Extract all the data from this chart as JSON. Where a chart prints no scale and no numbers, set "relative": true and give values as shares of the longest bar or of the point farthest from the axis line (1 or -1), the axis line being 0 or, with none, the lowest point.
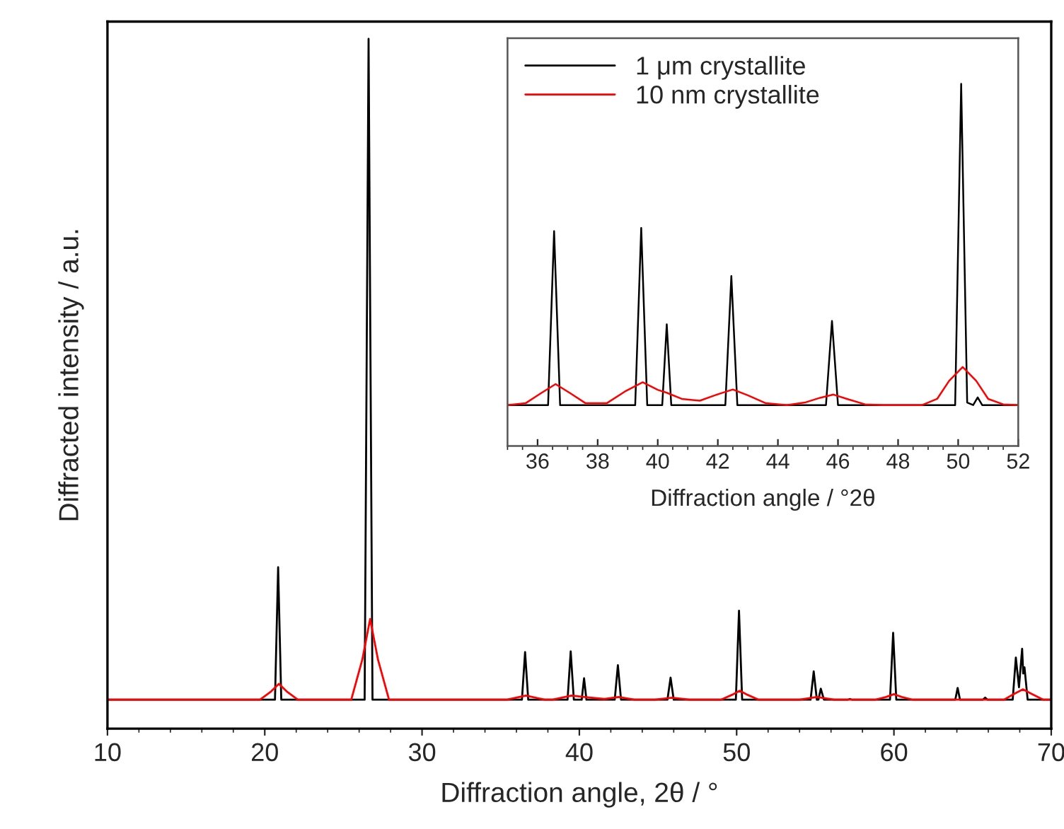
{
  "chart_data": [
    {
      "type": "line",
      "xlabel": "Diffraction angle, 2θ / °",
      "ylabel": "Diffracted intensity / a.u.",
      "relative": true,
      "xlim": [
        10,
        70
      ],
      "xticks": [
        10,
        20,
        30,
        40,
        50,
        60,
        70
      ],
      "tick_labels": "x",
      "grid": false,
      "legend": false,
      "series": [
        {
          "color": "#000000",
          "x": [
            10,
            20.65,
            20.85,
            21.05,
            26.35,
            26.6,
            26.85,
            36.35,
            36.55,
            36.75,
            39.25,
            39.45,
            39.65,
            40.15,
            40.3,
            40.45,
            42.25,
            42.45,
            42.65,
            45.6,
            45.8,
            46.0,
            49.95,
            50.15,
            50.35,
            54.7,
            54.9,
            55.1,
            55.2,
            55.35,
            55.55,
            57.05,
            57.2,
            57.35,
            59.75,
            59.95,
            60.15,
            63.9,
            64.05,
            64.2,
            65.65,
            65.8,
            65.95,
            67.55,
            67.75,
            67.95,
            68.15,
            68.22,
            68.3,
            68.5,
            70
          ],
          "values": [
            0.042,
            0.042,
            0.234,
            0.042,
            0.042,
            1.0,
            0.042,
            0.042,
            0.111,
            0.042,
            0.042,
            0.112,
            0.042,
            0.042,
            0.073,
            0.042,
            0.042,
            0.092,
            0.042,
            0.042,
            0.074,
            0.042,
            0.042,
            0.171,
            0.042,
            0.042,
            0.083,
            0.042,
            0.042,
            0.058,
            0.042,
            0.042,
            0.043,
            0.042,
            0.042,
            0.139,
            0.042,
            0.042,
            0.059,
            0.042,
            0.042,
            0.045,
            0.042,
            0.042,
            0.103,
            0.06,
            0.116,
            0.08,
            0.089,
            0.042,
            0.042
          ]
        },
        {
          "color": "#ff0000",
          "x": [
            10,
            19.7,
            20.4,
            20.9,
            21.4,
            22.1,
            25.5,
            26.2,
            26.7,
            27.2,
            27.9,
            35.4,
            36.6,
            37.8,
            38.3,
            39.5,
            40.3,
            41.6,
            42.5,
            43.5,
            44.8,
            45.9,
            47.0,
            49.0,
            49.7,
            50.2,
            50.7,
            51.4,
            54.0,
            55.1,
            56.2,
            58.8,
            59.5,
            60.0,
            60.5,
            61.2,
            67.0,
            67.6,
            68.2,
            68.8,
            69.5,
            70
          ],
          "values": [
            0.042,
            0.042,
            0.054,
            0.065,
            0.054,
            0.042,
            0.042,
            0.1,
            0.159,
            0.1,
            0.042,
            0.042,
            0.048,
            0.042,
            0.042,
            0.048,
            0.046,
            0.043,
            0.046,
            0.042,
            0.042,
            0.045,
            0.042,
            0.042,
            0.049,
            0.055,
            0.049,
            0.042,
            0.042,
            0.046,
            0.042,
            0.042,
            0.046,
            0.05,
            0.046,
            0.042,
            0.042,
            0.05,
            0.057,
            0.05,
            0.042,
            0.042
          ]
        }
      ]
    },
    {
      "type": "line",
      "xlabel": "Diffraction angle / °2θ",
      "relative": true,
      "xlim": [
        35,
        52
      ],
      "xticks": [
        36,
        38,
        40,
        42,
        44,
        46,
        48,
        50,
        52
      ],
      "tick_labels": "x",
      "grid": false,
      "legend": "top left",
      "series": [
        {
          "name": "1 μm crystallite",
          "color": "#000000",
          "x": [
            35,
            36.35,
            36.55,
            36.75,
            39.25,
            39.45,
            39.65,
            40.15,
            40.3,
            40.45,
            42.25,
            42.45,
            42.65,
            45.6,
            45.8,
            46.0,
            49.9,
            50.1,
            50.3,
            50.5,
            50.65,
            50.8,
            52
          ],
          "values": [
            0.113,
            0.113,
            0.593,
            0.113,
            0.113,
            0.602,
            0.113,
            0.113,
            0.336,
            0.113,
            0.113,
            0.469,
            0.113,
            0.113,
            0.345,
            0.113,
            0.113,
            1.0,
            0.12,
            0.113,
            0.134,
            0.113,
            0.113
          ]
        },
        {
          "name": "10 nm crystallite",
          "color": "#ff0000",
          "x": [
            35,
            35.6,
            36.1,
            36.6,
            37.1,
            37.6,
            38.3,
            38.9,
            39.5,
            40.0,
            40.3,
            40.8,
            41.4,
            41.9,
            42.5,
            43.0,
            43.6,
            44.3,
            44.9,
            45.4,
            45.85,
            46.3,
            46.9,
            47.5,
            48.8,
            49.3,
            49.7,
            50.15,
            50.6,
            51.0,
            51.5,
            52
          ],
          "values": [
            0.113,
            0.118,
            0.145,
            0.171,
            0.145,
            0.118,
            0.118,
            0.15,
            0.176,
            0.155,
            0.147,
            0.13,
            0.125,
            0.14,
            0.156,
            0.14,
            0.118,
            0.113,
            0.12,
            0.133,
            0.142,
            0.13,
            0.115,
            0.113,
            0.113,
            0.13,
            0.18,
            0.218,
            0.18,
            0.13,
            0.115,
            0.113
          ]
        }
      ]
    }
  ]
}
